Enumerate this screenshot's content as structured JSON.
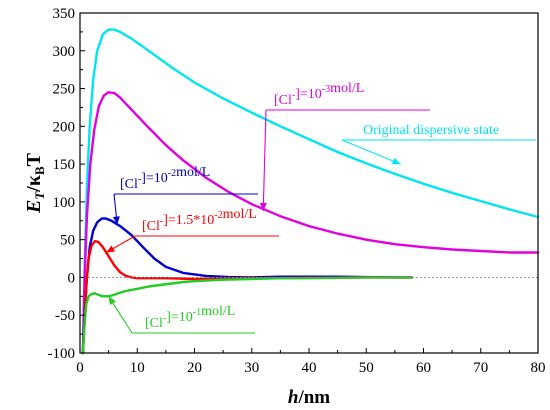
{
  "chart_data": {
    "type": "line",
    "xlabel": {
      "italic": "h",
      "rest": "/nm"
    },
    "ylabel": {
      "e": "E",
      "e_sub": "T",
      "slash": "/",
      "k": "κ",
      "k_sub": "B",
      "t": "T"
    },
    "xlim": [
      0,
      80
    ],
    "ylim": [
      -100,
      350
    ],
    "xticks": [
      0,
      10,
      20,
      30,
      40,
      50,
      60,
      70,
      80
    ],
    "yticks": [
      -100,
      -50,
      0,
      50,
      100,
      150,
      200,
      250,
      300,
      350
    ],
    "grid": false,
    "legend": "none",
    "series": [
      {
        "color": "#00e5f0",
        "points": [
          [
            0.5,
            -100
          ],
          [
            0.8,
            10
          ],
          [
            1.2,
            120
          ],
          [
            1.7,
            200
          ],
          [
            2.3,
            262
          ],
          [
            3,
            300
          ],
          [
            4,
            322
          ],
          [
            5,
            328
          ],
          [
            6,
            328
          ],
          [
            7,
            325
          ],
          [
            9,
            316
          ],
          [
            12,
            300
          ],
          [
            16,
            278
          ],
          [
            20,
            258
          ],
          [
            25,
            237
          ],
          [
            30,
            218
          ],
          [
            35,
            200
          ],
          [
            40,
            183
          ],
          [
            45,
            166
          ],
          [
            50,
            151
          ],
          [
            55,
            137
          ],
          [
            60,
            124
          ],
          [
            65,
            112
          ],
          [
            70,
            101
          ],
          [
            75,
            90
          ],
          [
            80,
            80
          ]
        ]
      },
      {
        "color": "#e000e0",
        "points": [
          [
            0.5,
            -100
          ],
          [
            0.8,
            0
          ],
          [
            1.2,
            80
          ],
          [
            1.8,
            150
          ],
          [
            2.5,
            196
          ],
          [
            3.3,
            227
          ],
          [
            4.2,
            241
          ],
          [
            5,
            245
          ],
          [
            6,
            244
          ],
          [
            7,
            238
          ],
          [
            9,
            222
          ],
          [
            12,
            198
          ],
          [
            15,
            175
          ],
          [
            18,
            155
          ],
          [
            22,
            132
          ],
          [
            26,
            113
          ],
          [
            30,
            97
          ],
          [
            35,
            81
          ],
          [
            40,
            68
          ],
          [
            45,
            58
          ],
          [
            50,
            50
          ],
          [
            55,
            44
          ],
          [
            60,
            40
          ],
          [
            65,
            37
          ],
          [
            70,
            35
          ],
          [
            75,
            33
          ],
          [
            80,
            33
          ]
        ]
      },
      {
        "color": "#0000d0",
        "points": [
          [
            0.5,
            -100
          ],
          [
            0.8,
            -50
          ],
          [
            1.2,
            0
          ],
          [
            1.7,
            40
          ],
          [
            2.3,
            62
          ],
          [
            3,
            73
          ],
          [
            3.8,
            78
          ],
          [
            4.5,
            78
          ],
          [
            5.5,
            75
          ],
          [
            7,
            68
          ],
          [
            9,
            56
          ],
          [
            11,
            40
          ],
          [
            13,
            25
          ],
          [
            15,
            14
          ],
          [
            18,
            6
          ],
          [
            22,
            2
          ],
          [
            26,
            0.5
          ],
          [
            30,
            0
          ],
          [
            35,
            1
          ],
          [
            40,
            1
          ],
          [
            45,
            1
          ],
          [
            50,
            0.5
          ],
          [
            55,
            0
          ],
          [
            58,
            0
          ]
        ]
      },
      {
        "color": "#ff0000",
        "points": [
          [
            0.5,
            -100
          ],
          [
            0.8,
            -60
          ],
          [
            1.1,
            -10
          ],
          [
            1.5,
            25
          ],
          [
            2,
            42
          ],
          [
            2.6,
            48
          ],
          [
            3.2,
            47
          ],
          [
            4,
            40
          ],
          [
            5,
            28
          ],
          [
            6,
            16
          ],
          [
            7,
            7
          ],
          [
            8,
            2
          ],
          [
            9,
            0
          ],
          [
            10,
            -1
          ],
          [
            15,
            -1
          ],
          [
            20,
            -2
          ],
          [
            25,
            -1.5
          ],
          [
            30,
            -1
          ],
          [
            40,
            -0.5
          ],
          [
            50,
            0
          ],
          [
            58,
            0
          ]
        ]
      },
      {
        "color": "#22cc22",
        "points": [
          [
            0.5,
            -100
          ],
          [
            0.8,
            -60
          ],
          [
            1.1,
            -35
          ],
          [
            1.5,
            -25
          ],
          [
            2,
            -22
          ],
          [
            2.6,
            -21
          ],
          [
            3.2,
            -23
          ],
          [
            4,
            -25
          ],
          [
            5,
            -25
          ],
          [
            6,
            -23
          ],
          [
            7,
            -20
          ],
          [
            8,
            -18
          ],
          [
            10,
            -15
          ],
          [
            12,
            -12
          ],
          [
            14,
            -10
          ],
          [
            16,
            -8
          ],
          [
            18,
            -6
          ],
          [
            20,
            -5
          ],
          [
            25,
            -3
          ],
          [
            30,
            -2
          ],
          [
            35,
            -1
          ],
          [
            40,
            -1
          ],
          [
            45,
            -0.5
          ],
          [
            50,
            0
          ],
          [
            55,
            0
          ],
          [
            58,
            0
          ]
        ]
      }
    ],
    "annotations": [
      {
        "text_parts": [
          "Original dispersive state"
        ],
        "sup": "",
        "color": "#00e5f0",
        "target": [
          56,
          150
        ]
      },
      {
        "text_parts": [
          "[Cl",
          "]=10",
          "mol/L"
        ],
        "sups": [
          "-",
          "-3"
        ],
        "color": "#e000e0",
        "target": [
          32,
          88
        ]
      },
      {
        "text_parts": [
          "[Cl",
          "]=10",
          "mol/L"
        ],
        "sups": [
          "-",
          "-2"
        ],
        "color": "#0000d0",
        "target": [
          6.5,
          70
        ]
      },
      {
        "text_parts": [
          "[Cl",
          "]=1.5*10",
          "mol/L"
        ],
        "sups": [
          "-",
          "-2"
        ],
        "color": "#ff0000",
        "target": [
          4.6,
          33
        ]
      },
      {
        "text_parts": [
          "[Cl",
          "]=10",
          "mol/L"
        ],
        "sups": [
          "-",
          "-1"
        ],
        "color": "#22cc22",
        "target": [
          5,
          -25
        ]
      }
    ]
  }
}
